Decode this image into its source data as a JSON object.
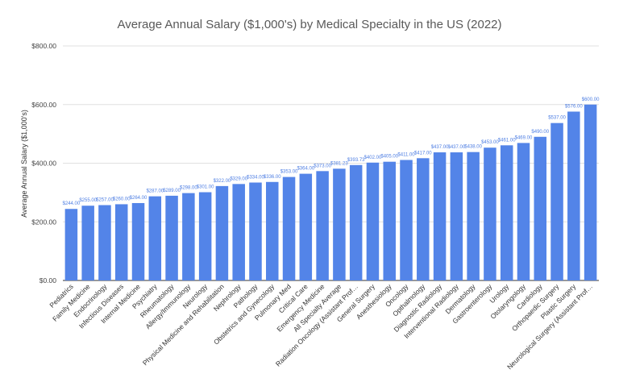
{
  "chart_data": {
    "type": "bar",
    "title": "Average Annual Salary ($1,000's) by Medical Specialty in the US (2022)",
    "xlabel": "",
    "ylabel": "Average Annual Salary ($1,000's)",
    "ylim": [
      0,
      800
    ],
    "yticks": [
      0,
      200,
      400,
      600,
      800
    ],
    "ytick_labels": [
      "$0.00",
      "$200.00",
      "$400.00",
      "$600.00",
      "$800.00"
    ],
    "grid": true,
    "bar_color": "#5384e8",
    "label_color": "#4f7fe3",
    "categories": [
      "Pediatrics",
      "Family Medicine",
      "Endocrinology",
      "Infectious Diseases",
      "Internal Medicine",
      "Psychiatry",
      "Rheumatology",
      "Allergy/Immunology",
      "Neurology",
      "Physical Medicine and Rehabilitation",
      "Nephrology",
      "Pathology",
      "Obstetrics and Gynecology",
      "Pulmonary Med",
      "Critical Care",
      "Emergency Medicine",
      "All Specialty Average",
      "Radiation Oncology (Assistant Prof…",
      "General Surgery",
      "Anesthesiology",
      "Oncology",
      "Opthalmology",
      "Diagnostic Radiology",
      "Interventional Radiology",
      "Dermatology",
      "Gastroenterology",
      "Urology",
      "Otolaryngology",
      "Cardiology",
      "Orthopaedic Surgery",
      "Plastic Surgery",
      "Neurological Surgery (Assistant Prof…"
    ],
    "values": [
      244,
      255,
      257,
      260,
      264,
      287,
      289,
      298,
      301,
      322,
      329,
      334,
      336,
      353,
      364,
      373,
      381.23,
      393.73,
      402,
      405,
      411,
      417,
      437,
      437,
      438,
      453,
      461,
      469,
      490,
      537,
      576,
      600
    ],
    "data_labels": [
      "$244.00",
      "$255.00",
      "$257.00",
      "$260.00",
      "$264.00",
      "$287.00",
      "$289.00",
      "$298.00",
      "$301.00",
      "$322.00",
      "$329.00",
      "$334.00",
      "$336.00",
      "$353.00",
      "$364.00",
      "$373.00",
      "$381.23",
      "$393.73",
      "$402.00",
      "$405.00",
      "$411.00",
      "$417.00",
      "$437.00",
      "$437.00",
      "$438.00",
      "$453.00",
      "$461.00",
      "$469.00",
      "$490.00",
      "$537.00",
      "$576.00",
      "$600.00"
    ]
  }
}
